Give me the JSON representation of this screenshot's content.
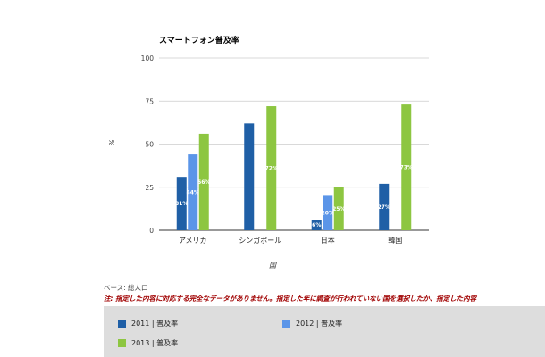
{
  "chart_data": {
    "type": "bar",
    "title": "スマートフォン普及率",
    "xlabel": "国",
    "ylabel": "%",
    "ylim": [
      0,
      100
    ],
    "yticks": [
      "0",
      "25",
      "50",
      "75",
      "100"
    ],
    "categories": [
      "アメリカ",
      "シンガポール",
      "日本",
      "韓国"
    ],
    "series": [
      {
        "name": "2011 | 普及率",
        "color": "#1f5fa6",
        "values": [
          31,
          62,
          6,
          27
        ],
        "labels": [
          "31%",
          "",
          "6%",
          "27%"
        ]
      },
      {
        "name": "2012 | 普及率",
        "color": "#5b95e8",
        "values": [
          44,
          null,
          20,
          null
        ],
        "labels": [
          "44%",
          "",
          "20%",
          ""
        ]
      },
      {
        "name": "2013 | 普及率",
        "color": "#8dc641",
        "values": [
          56,
          72,
          25,
          73
        ],
        "labels": [
          "56%",
          "72%",
          "25%",
          "73%"
        ]
      }
    ],
    "grid": true,
    "legend_position": "bottom"
  },
  "footer": {
    "base": "ベース: 総人口",
    "note": "注: 指定した内容に対応する完全なデータがありません。指定した年に調査が行われていない国を選択したか、指定した内容"
  }
}
